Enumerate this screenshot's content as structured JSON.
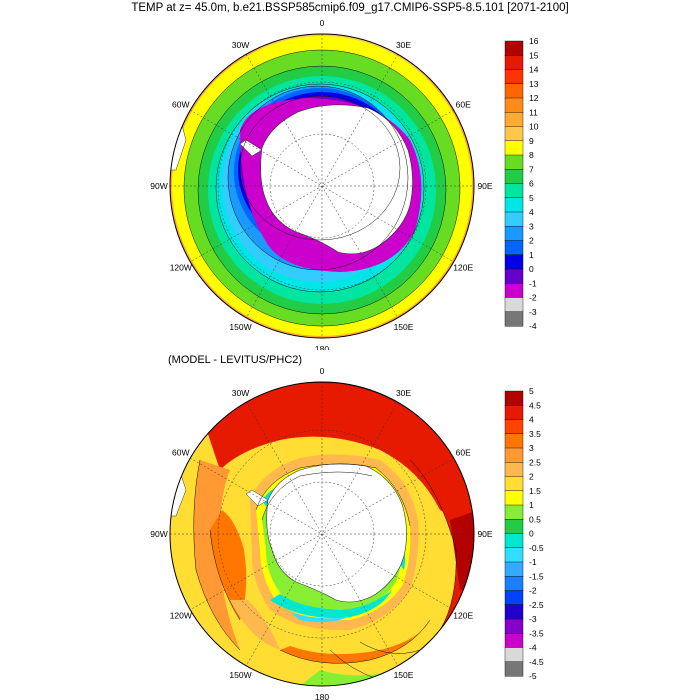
{
  "title": "TEMP at z=  45.0m, b.e21.BSSP585cmip6.f09_g17.CMIP6-SSP5-8.5.101 [2071-2100]",
  "subtitle": "(MODEL - LEVITUS/PHC2)",
  "longitude_labels": {
    "n0": "0",
    "n30e": "30E",
    "n60e": "60E",
    "n90e": "90E",
    "n120e": "120E",
    "n150e": "150E",
    "n180": "180",
    "n150w": "150W",
    "n120w": "120W",
    "n90w": "90W",
    "n60w": "60W",
    "n30w": "30W"
  },
  "top_panel": {
    "colorbar": {
      "labels": [
        "16",
        "15",
        "14",
        "13",
        "12",
        "11",
        "10",
        "9",
        "8",
        "7",
        "6",
        "5",
        "4",
        "3",
        "2",
        "1",
        "0",
        "-1",
        "-2",
        "-3",
        "-4"
      ],
      "colors": [
        "#b30000",
        "#e61a00",
        "#ff3300",
        "#ff6600",
        "#ff8c1a",
        "#ffaa33",
        "#ffc84d",
        "#ffff00",
        "#66dd22",
        "#22cc44",
        "#00e6a0",
        "#00e6e6",
        "#33ccff",
        "#1a99ff",
        "#0066ff",
        "#0000e6",
        "#6600cc",
        "#cc00cc",
        "#d9d9d9",
        "#777777"
      ]
    }
  },
  "bottom_panel": {
    "colorbar": {
      "labels": [
        "5",
        "4.5",
        "4",
        "3.5",
        "3",
        "2.5",
        "2",
        "1.5",
        "1",
        "0.5",
        "0",
        "-0.5",
        "-1",
        "-1.5",
        "-2",
        "-2.5",
        "-3",
        "-3.5",
        "-4",
        "-4.5",
        "-5"
      ],
      "colors": [
        "#b30000",
        "#e61a00",
        "#ff4400",
        "#ff7700",
        "#ff9933",
        "#ffb84d",
        "#ffdd33",
        "#ffff00",
        "#88ee33",
        "#22cc44",
        "#00e6d0",
        "#33ddff",
        "#33aaff",
        "#1a80ff",
        "#0044ff",
        "#2200cc",
        "#8800cc",
        "#cc00cc",
        "#d9d9d9",
        "#777777"
      ]
    }
  }
}
